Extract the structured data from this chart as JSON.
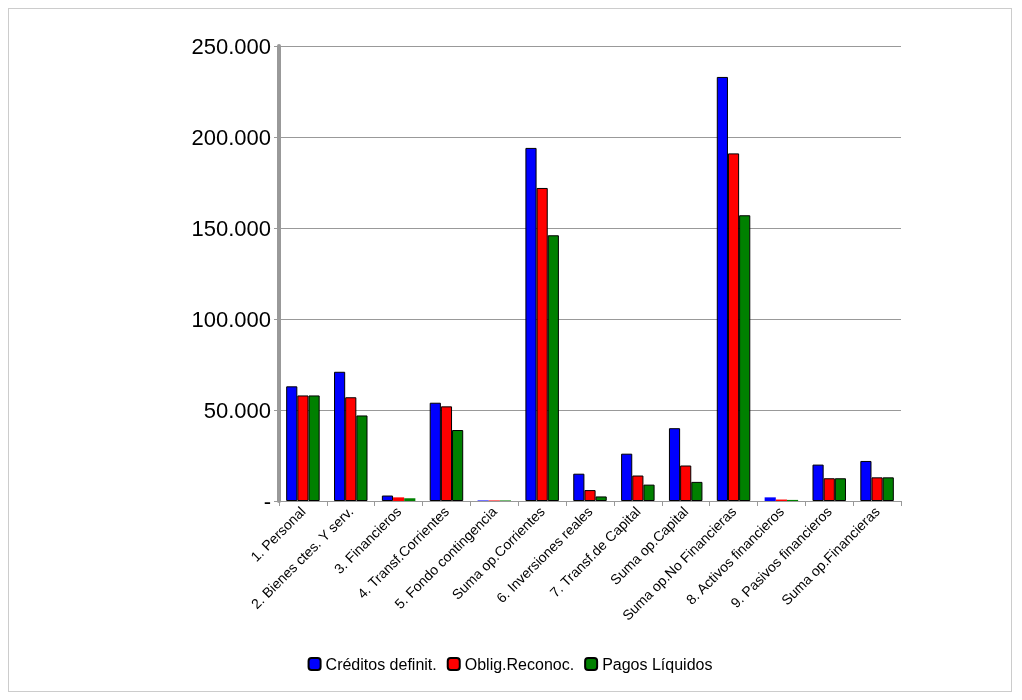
{
  "chart_data": {
    "type": "bar",
    "categories": [
      "1. Personal",
      "2. Bienes ctes. Y serv.",
      "3. Financieros",
      "4. Transf.Corrientes",
      "5. Fondo contingencia",
      "Suma op.Corrientes",
      "6. Inversiones reales",
      "7. Transf.de Capital",
      "Suma op.Capital",
      "Suma op.No Financieras",
      "8. Activos financieros",
      "9. Pasivos financieros",
      "Suma op.Financieras"
    ],
    "series": [
      {
        "name": "Créditos definit.",
        "color": "#0000ff",
        "values": [
          63000,
          71000,
          3000,
          54000,
          300,
          194000,
          15000,
          26000,
          40000,
          233000,
          2000,
          20000,
          22000
        ]
      },
      {
        "name": "Oblig.Reconoc.",
        "color": "#ff0000",
        "values": [
          58000,
          57000,
          2000,
          52000,
          300,
          172000,
          6000,
          14000,
          19500,
          191000,
          800,
          12500,
          13000
        ]
      },
      {
        "name": "Pagos Líquidos",
        "color": "#008000",
        "values": [
          58000,
          47000,
          1500,
          39000,
          300,
          146000,
          2500,
          9000,
          10500,
          157000,
          600,
          12500,
          13000
        ]
      }
    ],
    "ylim": [
      0,
      250000
    ],
    "yticks": [
      {
        "value": 0,
        "label": "-"
      },
      {
        "value": 50000,
        "label": "50.000"
      },
      {
        "value": 100000,
        "label": "100.000"
      },
      {
        "value": 150000,
        "label": "150.000"
      },
      {
        "value": 200000,
        "label": "200.000"
      },
      {
        "value": 250000,
        "label": "250.000"
      }
    ],
    "grid": "y",
    "legend": "bottom"
  }
}
